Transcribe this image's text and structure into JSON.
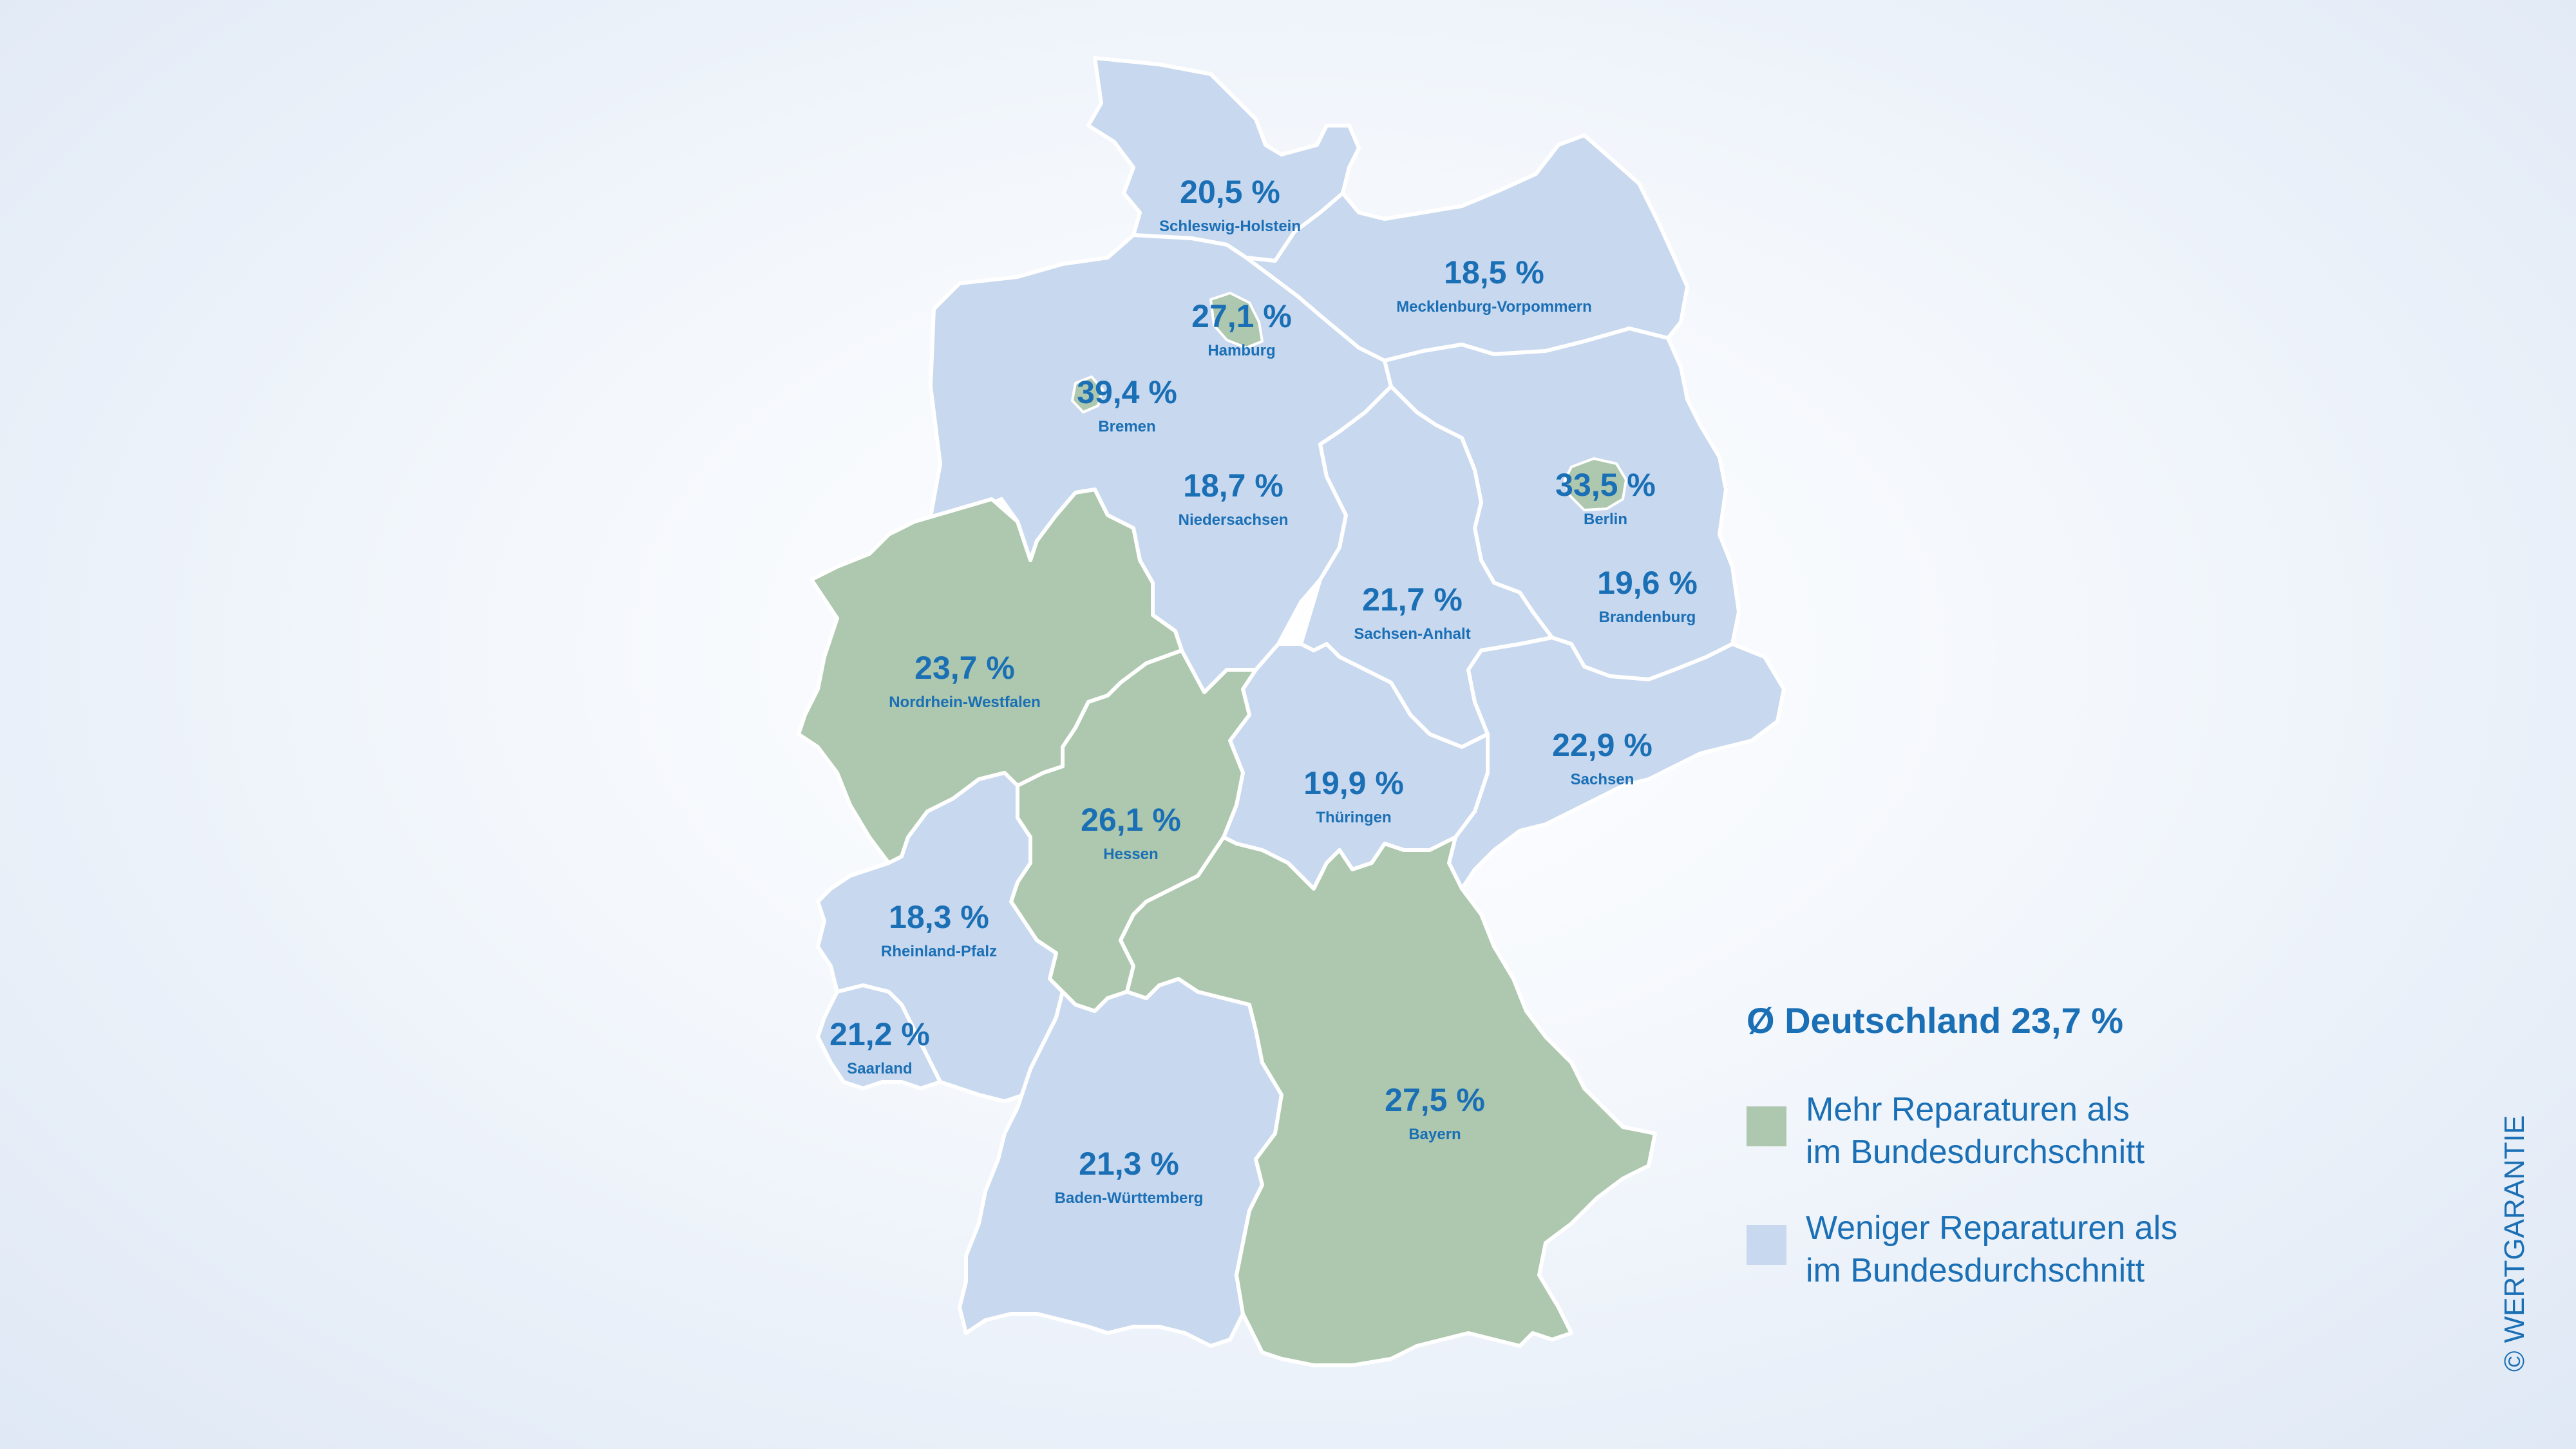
{
  "colors": {
    "above_average": "#adc8ae",
    "below_average": "#c8d8ef",
    "text": "#1a6fb5",
    "border": "#ffffff"
  },
  "average": {
    "label": "Ø Deutschland 23,7 %",
    "value": 23.7
  },
  "states": [
    {
      "id": "schleswig-holstein",
      "name": "Schleswig-Holstein",
      "value_label": "20,5 %",
      "value": 20.5,
      "category": "below_average"
    },
    {
      "id": "mecklenburg-vorpommern",
      "name": "Mecklenburg-Vorpommern",
      "value_label": "18,5 %",
      "value": 18.5,
      "category": "below_average"
    },
    {
      "id": "hamburg",
      "name": "Hamburg",
      "value_label": "27,1 %",
      "value": 27.1,
      "category": "above_average"
    },
    {
      "id": "bremen",
      "name": "Bremen",
      "value_label": "39,4 %",
      "value": 39.4,
      "category": "above_average"
    },
    {
      "id": "niedersachsen",
      "name": "Niedersachsen",
      "value_label": "18,7 %",
      "value": 18.7,
      "category": "below_average"
    },
    {
      "id": "berlin",
      "name": "Berlin",
      "value_label": "33,5 %",
      "value": 33.5,
      "category": "above_average"
    },
    {
      "id": "brandenburg",
      "name": "Brandenburg",
      "value_label": "19,6 %",
      "value": 19.6,
      "category": "below_average"
    },
    {
      "id": "sachsen-anhalt",
      "name": "Sachsen-Anhalt",
      "value_label": "21,7 %",
      "value": 21.7,
      "category": "below_average"
    },
    {
      "id": "nordrhein-westfalen",
      "name": "Nordrhein-Westfalen",
      "value_label": "23,7 %",
      "value": 23.7,
      "category": "above_average"
    },
    {
      "id": "sachsen",
      "name": "Sachsen",
      "value_label": "22,9 %",
      "value": 22.9,
      "category": "below_average"
    },
    {
      "id": "hessen",
      "name": "Hessen",
      "value_label": "26,1 %",
      "value": 26.1,
      "category": "above_average"
    },
    {
      "id": "thueringen",
      "name": "Thüringen",
      "value_label": "19,9 %",
      "value": 19.9,
      "category": "below_average"
    },
    {
      "id": "rheinland-pfalz",
      "name": "Rheinland-Pfalz",
      "value_label": "18,3 %",
      "value": 18.3,
      "category": "below_average"
    },
    {
      "id": "saarland",
      "name": "Saarland",
      "value_label": "21,2 %",
      "value": 21.2,
      "category": "below_average"
    },
    {
      "id": "bayern",
      "name": "Bayern",
      "value_label": "27,5 %",
      "value": 27.5,
      "category": "above_average"
    },
    {
      "id": "baden-wuerttemberg",
      "name": "Baden-Württemberg",
      "value_label": "21,3 %",
      "value": 21.3,
      "category": "below_average"
    }
  ],
  "legend": [
    {
      "id": "above_average",
      "label": "Mehr Reparaturen als\nim Bundesdurchschnitt"
    },
    {
      "id": "below_average",
      "label": "Weniger Reparaturen als\nim Bundesdurchschnitt"
    }
  ],
  "copyright": "© WERTGARANTIE"
}
